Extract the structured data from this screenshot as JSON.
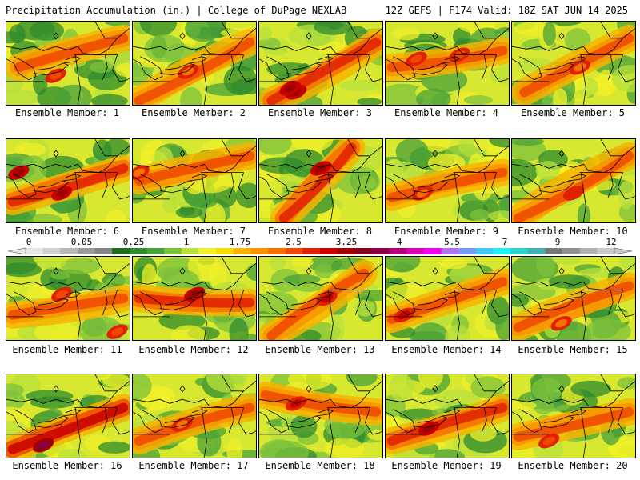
{
  "header": {
    "left": "Precipitation Accumulation (in.) | College of DuPage NEXLAB",
    "right": "12Z GEFS | F174 Valid: 18Z SAT JUN 14 2025"
  },
  "panels": [
    {
      "label": "Ensemble Member: 1",
      "peak": 0.48,
      "axis": [
        [
          0.1,
          0.55
        ],
        [
          0.95,
          0.2
        ]
      ],
      "hot": [
        [
          0.4,
          0.65
        ]
      ]
    },
    {
      "label": "Ensemble Member: 2",
      "peak": 0.32,
      "axis": [
        [
          0.05,
          0.95
        ],
        [
          0.95,
          0.25
        ]
      ],
      "hot": [
        [
          0.45,
          0.6
        ]
      ]
    },
    {
      "label": "Ensemble Member: 3",
      "peak": 0.7,
      "axis": [
        [
          0.1,
          0.95
        ],
        [
          0.95,
          0.25
        ]
      ],
      "hot": [
        [
          0.3,
          0.85
        ],
        [
          0.25,
          0.8
        ]
      ]
    },
    {
      "label": "Ensemble Member: 4",
      "peak": 0.45,
      "axis": [
        [
          0.05,
          0.55
        ],
        [
          0.95,
          0.35
        ]
      ],
      "hot": [
        [
          0.25,
          0.45
        ],
        [
          0.6,
          0.4
        ]
      ]
    },
    {
      "label": "Ensemble Member: 5",
      "peak": 0.4,
      "axis": [
        [
          0.1,
          0.85
        ],
        [
          0.95,
          0.2
        ]
      ],
      "hot": [
        [
          0.55,
          0.55
        ]
      ]
    },
    {
      "label": "Ensemble Member: 6",
      "peak": 0.72,
      "axis": [
        [
          0.05,
          0.75
        ],
        [
          0.95,
          0.35
        ]
      ],
      "hot": [
        [
          0.45,
          0.65
        ],
        [
          0.1,
          0.4
        ]
      ]
    },
    {
      "label": "Ensemble Member: 7",
      "peak": 0.4,
      "axis": [
        [
          0.05,
          0.5
        ],
        [
          0.95,
          0.2
        ]
      ],
      "hot": [
        [
          0.05,
          0.4
        ]
      ]
    },
    {
      "label": "Ensemble Member: 8",
      "peak": 0.7,
      "axis": [
        [
          0.2,
          0.95
        ],
        [
          0.75,
          0.1
        ]
      ],
      "hot": [
        [
          0.5,
          0.35
        ]
      ]
    },
    {
      "label": "Ensemble Member: 9",
      "peak": 0.35,
      "axis": [
        [
          0.05,
          0.7
        ],
        [
          0.95,
          0.4
        ]
      ],
      "hot": [
        [
          0.3,
          0.65
        ]
      ]
    },
    {
      "label": "Ensemble Member: 10",
      "peak": 0.5,
      "axis": [
        [
          0.05,
          0.95
        ],
        [
          0.95,
          0.2
        ]
      ],
      "hot": [
        [
          0.5,
          0.65
        ]
      ]
    },
    {
      "label": "Ensemble Member: 11",
      "peak": 0.46,
      "axis": [
        [
          0.05,
          0.7
        ],
        [
          0.95,
          0.5
        ]
      ],
      "hot": [
        [
          0.45,
          0.45
        ],
        [
          0.9,
          0.9
        ]
      ]
    },
    {
      "label": "Ensemble Member: 12",
      "peak": 0.72,
      "axis": [
        [
          0.05,
          0.5
        ],
        [
          0.95,
          0.55
        ]
      ],
      "hot": [
        [
          0.5,
          0.45
        ]
      ]
    },
    {
      "label": "Ensemble Member: 13",
      "peak": 0.62,
      "axis": [
        [
          0.1,
          0.95
        ],
        [
          0.85,
          0.2
        ]
      ],
      "hot": [
        [
          0.55,
          0.5
        ]
      ]
    },
    {
      "label": "Ensemble Member: 14",
      "peak": 0.68,
      "axis": [
        [
          0.05,
          0.75
        ],
        [
          0.95,
          0.3
        ]
      ],
      "hot": [
        [
          0.15,
          0.7
        ]
      ]
    },
    {
      "label": "Ensemble Member: 15",
      "peak": 0.32,
      "axis": [
        [
          0.05,
          0.85
        ],
        [
          0.95,
          0.35
        ]
      ],
      "hot": [
        [
          0.4,
          0.8
        ]
      ]
    },
    {
      "label": "Ensemble Member: 16",
      "peak": 0.78,
      "axis": [
        [
          0.05,
          0.9
        ],
        [
          0.95,
          0.4
        ]
      ],
      "hot": [
        [
          0.3,
          0.85
        ]
      ]
    },
    {
      "label": "Ensemble Member: 17",
      "peak": 0.38,
      "axis": [
        [
          0.05,
          0.8
        ],
        [
          0.95,
          0.4
        ]
      ],
      "hot": [
        [
          0.4,
          0.6
        ]
      ]
    },
    {
      "label": "Ensemble Member: 18",
      "peak": 0.62,
      "axis": [
        [
          0.05,
          0.25
        ],
        [
          0.95,
          0.45
        ]
      ],
      "hot": [
        [
          0.3,
          0.35
        ]
      ]
    },
    {
      "label": "Ensemble Member: 19",
      "peak": 0.75,
      "axis": [
        [
          0.05,
          0.8
        ],
        [
          0.95,
          0.4
        ]
      ],
      "hot": [
        [
          0.35,
          0.65
        ]
      ]
    },
    {
      "label": "Ensemble Member: 20",
      "peak": 0.48,
      "axis": [
        [
          0.05,
          0.75
        ],
        [
          0.95,
          0.45
        ]
      ],
      "hot": [
        [
          0.3,
          0.8
        ]
      ]
    }
  ],
  "colorbar": {
    "labels": [
      "0",
      "0.05",
      "0.25",
      "1",
      "1.75",
      "2.5",
      "3.25",
      "4",
      "5.5",
      "7",
      "9",
      "12"
    ],
    "colors": [
      "#e6e6e6",
      "#cfcfcf",
      "#b7b7b7",
      "#9a9a9a",
      "#868686",
      "#1f6b1f",
      "#2e8b2e",
      "#49a13a",
      "#7cc23c",
      "#b8e03c",
      "#f0f028",
      "#f8dc00",
      "#f8b400",
      "#f89400",
      "#f87000",
      "#f04800",
      "#e02000",
      "#c80000",
      "#a00000",
      "#840018",
      "#880048",
      "#b00078",
      "#d800b0",
      "#f000f0",
      "#b070f0",
      "#7898f8",
      "#40c8f8",
      "#20f0f0",
      "#30d0c8",
      "#40b0b0",
      "#707878",
      "#909090",
      "#b0b0b0",
      "#c8c8c8"
    ]
  }
}
